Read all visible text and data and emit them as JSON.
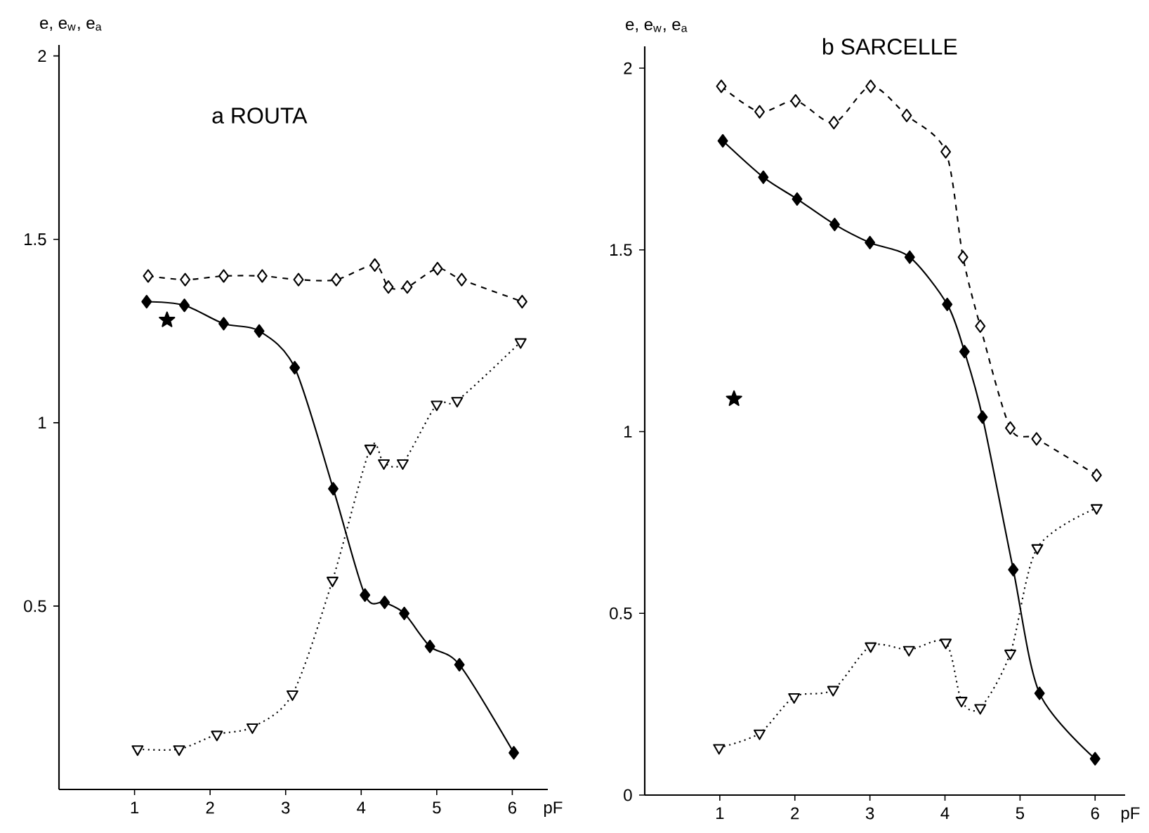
{
  "chart_data": [
    {
      "type": "line",
      "title": "a ROUTA",
      "xlabel": "pF",
      "ylabel": "e, e$_{w}$, e$_{a}$",
      "xlim": [
        0,
        6.47
      ],
      "ylim": [
        0,
        2.03
      ],
      "xticks": [
        1,
        2,
        3,
        4,
        5,
        6
      ],
      "yticks": [
        0.5,
        1,
        1.5,
        2
      ],
      "series": [
        {
          "color": "#000000",
          "marker": "diamond",
          "line_style": "solid",
          "x": [
            1.16,
            1.66,
            2.18,
            2.65,
            3.12,
            3.63,
            4.05,
            4.31,
            4.57,
            4.91,
            5.3,
            6.02
          ],
          "values": [
            1.33,
            1.32,
            1.27,
            1.25,
            1.15,
            0.82,
            0.53,
            0.51,
            0.48,
            0.39,
            0.34,
            0.1
          ]
        },
        {
          "type": "line",
          "color": "#000000",
          "marker": "diamond",
          "line_style": "dashed",
          "x": [
            1.18,
            1.67,
            2.18,
            2.69,
            3.17,
            3.67,
            4.18,
            4.36,
            4.61,
            5.01,
            5.33,
            6.13
          ],
          "values": [
            1.4,
            1.39,
            1.4,
            1.4,
            1.39,
            1.39,
            1.43,
            1.37,
            1.37,
            1.42,
            1.39,
            1.33
          ]
        },
        {
          "type": "line",
          "color": "#000000",
          "marker": "triangle",
          "line_style": "dotted",
          "x": [
            1.04,
            1.59,
            2.09,
            2.56,
            3.09,
            3.62,
            4.12,
            4.3,
            4.55,
            5.0,
            5.27,
            6.11
          ],
          "values": [
            0.11,
            0.11,
            0.15,
            0.17,
            0.26,
            0.57,
            0.93,
            0.89,
            0.89,
            1.05,
            1.06,
            1.22
          ]
        },
        {
          "type": "scatter",
          "color": "#000000",
          "marker": "star",
          "x": [
            1.43
          ],
          "values": [
            1.28
          ]
        }
      ]
    },
    {
      "type": "line",
      "title": "b SARCELLE",
      "xlabel": "pF",
      "ylabel": "e, e$_{w}$, e$_{a}$",
      "xlim": [
        0,
        6.4
      ],
      "ylim": [
        0,
        2.06
      ],
      "xticks": [
        1,
        2,
        3,
        4,
        5,
        6
      ],
      "yticks": [
        0,
        0.5,
        1,
        1.5,
        2
      ],
      "series": [
        {
          "color": "#000000",
          "marker": "diamond",
          "line_style": "solid",
          "x": [
            1.04,
            1.58,
            2.03,
            2.53,
            3.0,
            3.53,
            4.03,
            4.26,
            4.5,
            4.91,
            5.26,
            6.0
          ],
          "values": [
            1.8,
            1.7,
            1.64,
            1.57,
            1.52,
            1.48,
            1.35,
            1.22,
            1.04,
            0.62,
            0.28,
            0.1
          ]
        },
        {
          "type": "line",
          "color": "#000000",
          "marker": "diamond",
          "line_style": "dashed",
          "x": [
            1.02,
            1.53,
            2.01,
            2.52,
            3.01,
            3.49,
            4.01,
            4.24,
            4.47,
            4.87,
            5.22,
            6.02
          ],
          "values": [
            1.95,
            1.88,
            1.91,
            1.85,
            1.95,
            1.87,
            1.77,
            1.48,
            1.29,
            1.01,
            0.98,
            0.88
          ]
        },
        {
          "type": "line",
          "color": "#000000",
          "marker": "triangle",
          "line_style": "dotted",
          "x": [
            0.99,
            1.53,
            1.99,
            2.51,
            3.01,
            3.52,
            4.01,
            4.22,
            4.47,
            4.87,
            5.23,
            6.02
          ],
          "values": [
            0.13,
            0.17,
            0.27,
            0.29,
            0.41,
            0.4,
            0.42,
            0.26,
            0.24,
            0.39,
            0.68,
            0.79
          ]
        },
        {
          "type": "scatter",
          "color": "#000000",
          "marker": "star",
          "x": [
            1.19
          ],
          "values": [
            1.09
          ]
        }
      ]
    }
  ]
}
